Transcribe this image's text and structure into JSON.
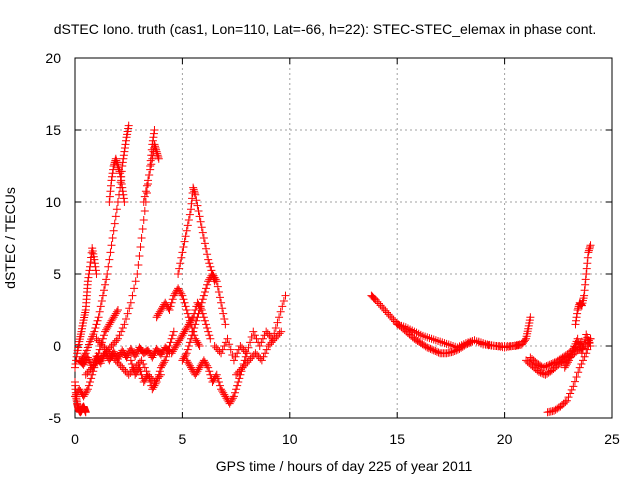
{
  "chart_data": {
    "type": "scatter",
    "title": "dSTEC Iono. truth (cas1, Lon=110, Lat=-66, h=22): STEC-STEC_elemax in phase cont.",
    "xlabel": "GPS time / hours of day 225 of year 2011",
    "ylabel": "dSTEC  / TECUs",
    "xlim": [
      0,
      25
    ],
    "ylim": [
      -5,
      20
    ],
    "xticks": [
      "0",
      "5",
      "10",
      "15",
      "20",
      "25"
    ],
    "yticks": [
      "-5",
      "0",
      "5",
      "10",
      "15",
      "20"
    ],
    "grid": true,
    "marker": "+",
    "color": "#ff0000",
    "segments": [
      {
        "x": [
          0.0,
          0.05,
          0.1,
          0.15,
          0.2,
          0.25,
          0.3,
          0.35,
          0.4,
          0.45,
          0.5
        ],
        "y": [
          -2.5,
          -3.5,
          -4.0,
          -4.3,
          -4.5,
          -4.6,
          -4.5,
          -4.3,
          -4.2,
          -4.4,
          -4.6
        ]
      },
      {
        "x": [
          0.0,
          0.1,
          0.2,
          0.3,
          0.4,
          0.5,
          0.55,
          0.6,
          0.7,
          0.8,
          0.9,
          1.0
        ],
        "y": [
          -1.5,
          -0.5,
          0.3,
          1.0,
          1.8,
          2.5,
          3.5,
          4.5,
          5.5,
          6.8,
          6.0,
          5.0
        ]
      },
      {
        "x": [
          0.3,
          0.5,
          0.7,
          0.9,
          1.1,
          1.3,
          1.5,
          1.7,
          1.9,
          2.1,
          2.2,
          2.3,
          2.4,
          2.5
        ],
        "y": [
          -1.0,
          -0.5,
          0.3,
          1.0,
          2.0,
          3.5,
          5.0,
          7.0,
          9.0,
          11.0,
          12.5,
          13.5,
          14.5,
          15.3
        ]
      },
      {
        "x": [
          1.6,
          1.7,
          1.8,
          1.9,
          2.0,
          2.1,
          2.2,
          2.3
        ],
        "y": [
          10.0,
          11.5,
          12.5,
          13.0,
          12.5,
          12.0,
          11.0,
          10.0
        ]
      },
      {
        "x": [
          0.5,
          0.8,
          1.1,
          1.4,
          1.7,
          2.0,
          2.3,
          2.6,
          2.9,
          3.1,
          3.3,
          3.5,
          3.6,
          3.7
        ],
        "y": [
          -2.0,
          -1.5,
          -1.0,
          -0.5,
          0.0,
          0.5,
          1.5,
          3.0,
          5.0,
          7.5,
          10.0,
          12.5,
          14.0,
          15.0
        ]
      },
      {
        "x": [
          3.2,
          3.4,
          3.6,
          3.7,
          3.8,
          3.9
        ],
        "y": [
          10.0,
          11.5,
          13.0,
          14.0,
          13.5,
          13.0
        ]
      },
      {
        "x": [
          0.0,
          0.2,
          0.4,
          0.6,
          0.8,
          1.0,
          1.2,
          1.4,
          1.6,
          1.8,
          2.0
        ],
        "y": [
          -3.5,
          -3.0,
          -3.5,
          -3.0,
          -2.0,
          -1.0,
          0.0,
          1.0,
          1.5,
          2.0,
          2.5
        ]
      },
      {
        "x": [
          0.2,
          0.4,
          0.6,
          0.8,
          1.0,
          1.2,
          1.4,
          1.6,
          1.8,
          2.0,
          2.2,
          2.4,
          2.6,
          2.8,
          3.0,
          3.2,
          3.4,
          3.6,
          3.8,
          4.0,
          4.2,
          4.4
        ],
        "y": [
          -1.0,
          -1.3,
          -0.8,
          -1.5,
          -0.7,
          -1.2,
          -0.5,
          -1.0,
          -0.4,
          -0.9,
          -0.3,
          -0.8,
          -0.2,
          -0.7,
          -0.1,
          -0.5,
          -0.3,
          -0.8,
          -0.2,
          -0.6,
          -0.1,
          -0.4
        ]
      },
      {
        "x": [
          1.0,
          1.3,
          1.6,
          1.9,
          2.2,
          2.5,
          2.8,
          3.1,
          3.4,
          3.7,
          4.0
        ],
        "y": [
          0.5,
          0.0,
          -0.5,
          -1.0,
          -1.5,
          -2.0,
          -1.5,
          -1.0,
          -2.0,
          -2.5,
          -2.0
        ]
      },
      {
        "x": [
          2.6,
          2.8,
          3.0,
          3.2,
          3.4,
          3.6,
          3.8,
          4.0,
          4.2,
          4.4,
          4.6
        ],
        "y": [
          -1.0,
          -2.0,
          -1.5,
          -2.5,
          -2.0,
          -3.0,
          -2.5,
          -1.5,
          -1.0,
          0.0,
          1.0
        ]
      },
      {
        "x": [
          3.8,
          4.0,
          4.2,
          4.4,
          4.6,
          4.8,
          5.0,
          5.2,
          5.4,
          5.6,
          5.8
        ],
        "y": [
          2.0,
          2.5,
          3.0,
          2.5,
          3.5,
          4.0,
          3.5,
          2.5,
          1.5,
          0.5,
          0.0
        ]
      },
      {
        "x": [
          4.8,
          5.0,
          5.2,
          5.4,
          5.5,
          5.6,
          5.8,
          6.0,
          6.2,
          6.4,
          6.5
        ],
        "y": [
          5.0,
          6.5,
          8.0,
          9.5,
          11.0,
          10.5,
          9.0,
          7.5,
          6.0,
          5.0,
          4.5
        ]
      },
      {
        "x": [
          5.0,
          5.2,
          5.4,
          5.6,
          5.8,
          6.0,
          6.2,
          6.4,
          6.6,
          6.8,
          7.0
        ],
        "y": [
          -1.0,
          -0.5,
          0.5,
          1.5,
          2.5,
          3.5,
          4.5,
          5.0,
          4.5,
          3.0,
          1.5
        ]
      },
      {
        "x": [
          4.5,
          4.7,
          4.9,
          5.1,
          5.3,
          5.5,
          5.7,
          5.9,
          6.1,
          6.3
        ],
        "y": [
          -0.5,
          0.0,
          0.5,
          1.0,
          1.5,
          2.0,
          3.0,
          2.5,
          1.5,
          0.5
        ]
      },
      {
        "x": [
          5.2,
          5.4,
          5.6,
          5.8,
          6.0,
          6.2,
          6.4,
          6.6,
          6.8,
          7.0,
          7.2,
          7.4,
          7.6,
          7.8,
          8.0
        ],
        "y": [
          -1.0,
          -1.5,
          -2.0,
          -1.5,
          -1.0,
          -1.5,
          -2.5,
          -2.0,
          -3.0,
          -3.5,
          -4.0,
          -3.5,
          -2.5,
          -1.5,
          -0.5
        ]
      },
      {
        "x": [
          6.5,
          6.8,
          7.1,
          7.4,
          7.7,
          8.0,
          8.3,
          8.6,
          8.9,
          9.2,
          9.5,
          9.8
        ],
        "y": [
          0.0,
          -0.5,
          0.5,
          -1.0,
          0.0,
          -0.5,
          1.0,
          0.0,
          1.0,
          0.5,
          2.0,
          3.5
        ]
      },
      {
        "x": [
          7.5,
          7.8,
          8.1,
          8.4,
          8.7,
          9.0,
          9.3,
          9.6
        ],
        "y": [
          -2.0,
          -1.5,
          -1.0,
          -0.5,
          -1.0,
          0.0,
          0.5,
          1.0
        ]
      },
      {
        "x": [
          13.8,
          14.0,
          14.3,
          14.6,
          14.9,
          15.2,
          15.5,
          15.8,
          16.1,
          16.4,
          16.7,
          17.0,
          17.3,
          17.6,
          17.9,
          18.2,
          18.5
        ],
        "y": [
          3.5,
          3.2,
          2.7,
          2.2,
          1.7,
          1.3,
          0.9,
          0.5,
          0.2,
          -0.1,
          -0.3,
          -0.5,
          -0.5,
          -0.4,
          -0.2,
          0.1,
          0.3
        ]
      },
      {
        "x": [
          15.0,
          15.4,
          15.8,
          16.2,
          16.6,
          17.0,
          17.4,
          17.8,
          18.2,
          18.6,
          19.0,
          19.5,
          20.0,
          20.5,
          20.8,
          21.0,
          21.1,
          21.2
        ],
        "y": [
          1.5,
          1.3,
          1.0,
          0.7,
          0.5,
          0.3,
          0.1,
          -0.1,
          0.2,
          0.4,
          0.1,
          0.0,
          0.0,
          0.0,
          0.1,
          0.5,
          1.2,
          2.0
        ]
      },
      {
        "x": [
          18.8,
          19.2,
          19.6,
          20.0,
          20.4,
          20.7
        ],
        "y": [
          0.3,
          0.1,
          0.0,
          -0.1,
          0.0,
          0.1
        ]
      },
      {
        "x": [
          21.0,
          21.3,
          21.6,
          21.9,
          22.2,
          22.5,
          22.8,
          23.1,
          23.4,
          23.7,
          24.0
        ],
        "y": [
          -1.0,
          -1.4,
          -1.8,
          -2.0,
          -1.7,
          -1.3,
          -1.0,
          -0.7,
          -0.3,
          0.0,
          0.5
        ]
      },
      {
        "x": [
          21.2,
          21.5,
          21.8,
          22.1,
          22.4,
          22.7,
          23.0,
          23.3,
          23.6
        ],
        "y": [
          -0.8,
          -1.2,
          -1.5,
          -1.3,
          -1.1,
          -0.8,
          -0.5,
          -0.1,
          0.3
        ]
      },
      {
        "x": [
          22.0,
          22.3,
          22.6,
          22.9,
          23.2,
          23.5,
          23.8,
          24.0
        ],
        "y": [
          -4.6,
          -4.5,
          -4.2,
          -3.8,
          -2.8,
          -1.5,
          -0.5,
          0.5
        ]
      },
      {
        "x": [
          23.3,
          23.4,
          23.5,
          23.6,
          23.7,
          23.8,
          23.9,
          24.0
        ],
        "y": [
          1.5,
          2.5,
          3.0,
          2.8,
          3.5,
          5.0,
          6.5,
          7.0
        ]
      },
      {
        "x": [
          22.8,
          23.0,
          23.2,
          23.4,
          23.6,
          23.8,
          24.0
        ],
        "y": [
          -1.5,
          -1.0,
          -0.2,
          0.5,
          -0.5,
          0.8,
          0.0
        ]
      }
    ]
  }
}
